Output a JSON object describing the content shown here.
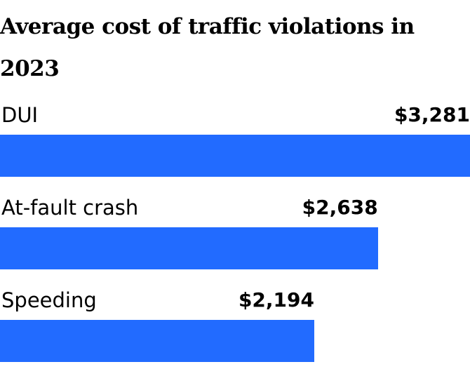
{
  "chart_data": {
    "type": "bar",
    "orientation": "horizontal",
    "title": "Average cost of traffic violations in 2023",
    "categories": [
      "DUI",
      "At-fault crash",
      "Speeding"
    ],
    "values": [
      3281,
      2638,
      2194
    ],
    "value_labels": [
      "$3,281",
      "$2,638",
      "$2,194"
    ],
    "xlim": [
      0,
      3281
    ],
    "grid": false,
    "bar_color": "#226bff"
  }
}
